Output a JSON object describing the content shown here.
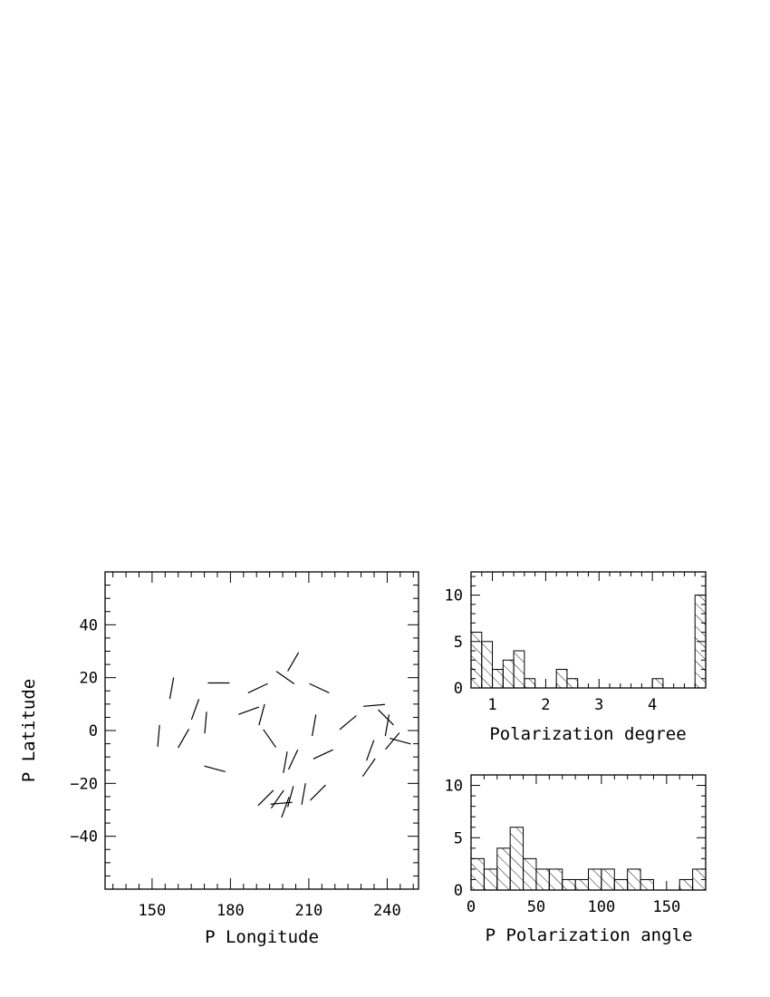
{
  "chart_data": [
    {
      "type": "scatter",
      "subtype": "vector-map",
      "title": "",
      "xlabel": "P Longitude",
      "ylabel": "P Latitude",
      "xlim": [
        132,
        252
      ],
      "ylim": [
        -60,
        60
      ],
      "xticks": [
        150,
        180,
        210,
        240
      ],
      "yticks": [
        -40,
        -20,
        0,
        20,
        40
      ],
      "grid": false,
      "vectors": [
        {
          "x": 157.5,
          "y": 16,
          "angle": 80
        },
        {
          "x": 152.5,
          "y": -2,
          "angle": 85
        },
        {
          "x": 162,
          "y": -3,
          "angle": 60
        },
        {
          "x": 166.5,
          "y": 8,
          "angle": 70
        },
        {
          "x": 170.5,
          "y": 3,
          "angle": 85
        },
        {
          "x": 175.5,
          "y": 18,
          "angle": 0
        },
        {
          "x": 174,
          "y": -14.5,
          "angle": -15
        },
        {
          "x": 187,
          "y": 7.5,
          "angle": 20
        },
        {
          "x": 192,
          "y": 6,
          "angle": 75
        },
        {
          "x": 190.5,
          "y": 16,
          "angle": 25
        },
        {
          "x": 201,
          "y": 20,
          "angle": -35
        },
        {
          "x": 204,
          "y": 26,
          "angle": 60
        },
        {
          "x": 195,
          "y": -3,
          "angle": -55
        },
        {
          "x": 201,
          "y": -12,
          "angle": 80
        },
        {
          "x": 204,
          "y": -11,
          "angle": 65
        },
        {
          "x": 214,
          "y": 16,
          "angle": -25
        },
        {
          "x": 212,
          "y": 2,
          "angle": 80
        },
        {
          "x": 215.5,
          "y": -9,
          "angle": 25
        },
        {
          "x": 213.5,
          "y": -23.5,
          "angle": 45
        },
        {
          "x": 208,
          "y": -24,
          "angle": 80
        },
        {
          "x": 203,
          "y": -25,
          "angle": 75
        },
        {
          "x": 198,
          "y": -26,
          "angle": 55
        },
        {
          "x": 193.5,
          "y": -25.5,
          "angle": 45
        },
        {
          "x": 201,
          "y": -29,
          "angle": 70
        },
        {
          "x": 199.5,
          "y": -27.5,
          "angle": 5
        },
        {
          "x": 225,
          "y": 3,
          "angle": 40
        },
        {
          "x": 235,
          "y": 9.5,
          "angle": 5
        },
        {
          "x": 233.5,
          "y": -7.5,
          "angle": 70
        },
        {
          "x": 233,
          "y": -14,
          "angle": 55
        },
        {
          "x": 240,
          "y": 2,
          "angle": 80
        },
        {
          "x": 239.5,
          "y": 5,
          "angle": -45
        },
        {
          "x": 242,
          "y": -4,
          "angle": 50
        },
        {
          "x": 245,
          "y": -4,
          "angle": -15
        }
      ]
    },
    {
      "type": "bar",
      "subtype": "histogram",
      "title": "",
      "xlabel": "Polarization degree",
      "ylabel": "",
      "xlim": [
        0.6,
        5.0
      ],
      "ylim": [
        0,
        12.5
      ],
      "xticks": [
        1,
        2,
        3,
        4
      ],
      "yticks": [
        0,
        5,
        10
      ],
      "bin_width": 0.2,
      "bins": [
        {
          "start": 0.6,
          "value": 6
        },
        {
          "start": 0.8,
          "value": 5
        },
        {
          "start": 1.0,
          "value": 2
        },
        {
          "start": 1.2,
          "value": 3
        },
        {
          "start": 1.4,
          "value": 4
        },
        {
          "start": 1.6,
          "value": 1
        },
        {
          "start": 2.2,
          "value": 2
        },
        {
          "start": 2.4,
          "value": 1
        },
        {
          "start": 4.0,
          "value": 1
        },
        {
          "start": 4.8,
          "value": 10
        }
      ]
    },
    {
      "type": "bar",
      "subtype": "histogram",
      "title": "",
      "xlabel": "P Polarization angle",
      "ylabel": "",
      "xlim": [
        0,
        180
      ],
      "ylim": [
        0,
        11
      ],
      "xticks": [
        0,
        50,
        100,
        150
      ],
      "yticks": [
        0,
        5,
        10
      ],
      "bin_width": 10,
      "bins": [
        {
          "start": 0,
          "value": 3
        },
        {
          "start": 10,
          "value": 2
        },
        {
          "start": 20,
          "value": 4
        },
        {
          "start": 30,
          "value": 6
        },
        {
          "start": 40,
          "value": 3
        },
        {
          "start": 50,
          "value": 2
        },
        {
          "start": 60,
          "value": 2
        },
        {
          "start": 70,
          "value": 1
        },
        {
          "start": 80,
          "value": 1
        },
        {
          "start": 90,
          "value": 2
        },
        {
          "start": 100,
          "value": 2
        },
        {
          "start": 110,
          "value": 1
        },
        {
          "start": 120,
          "value": 2
        },
        {
          "start": 130,
          "value": 1
        },
        {
          "start": 140,
          "value": 0
        },
        {
          "start": 150,
          "value": 0
        },
        {
          "start": 160,
          "value": 1
        },
        {
          "start": 170,
          "value": 2
        }
      ]
    }
  ]
}
